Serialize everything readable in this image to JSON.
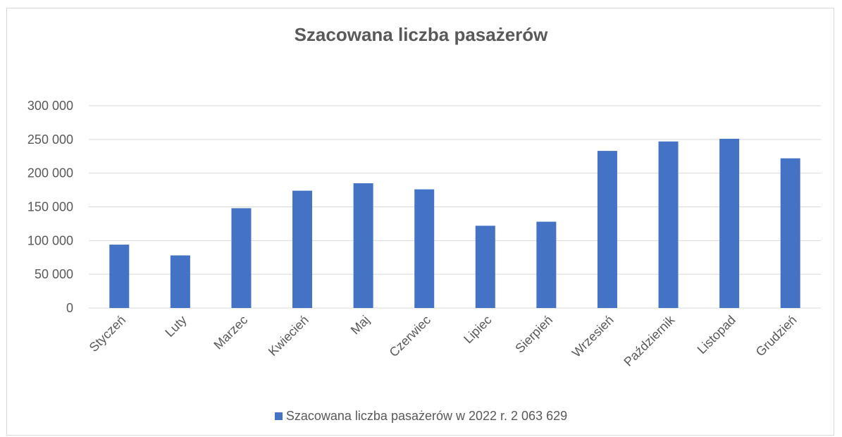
{
  "chart_data": {
    "type": "bar",
    "title": "Szacowana liczba pasażerów",
    "categories": [
      "Styczeń",
      "Luty",
      "Marzec",
      "Kwiecień",
      "Maj",
      "Czerwiec",
      "Lipiec",
      "Sierpień",
      "Wrzesień",
      "Październik",
      "Listopad",
      "Grudzień"
    ],
    "series": [
      {
        "name": "Szacowana liczba pasażerów w 2022 r. 2 063 629",
        "color": "#4472c4",
        "values": [
          94000,
          78000,
          148000,
          174000,
          185000,
          176000,
          122000,
          128000,
          233000,
          247000,
          251000,
          222000
        ]
      }
    ],
    "ylim": [
      0,
      300000
    ],
    "yticks": [
      0,
      50000,
      100000,
      150000,
      200000,
      250000,
      300000
    ],
    "ytick_labels": [
      "0",
      "50 000",
      "100 000",
      "150 000",
      "200 000",
      "250 000",
      "300 000"
    ],
    "grid": true,
    "legend": "bottom",
    "xlabel": "",
    "ylabel": ""
  }
}
